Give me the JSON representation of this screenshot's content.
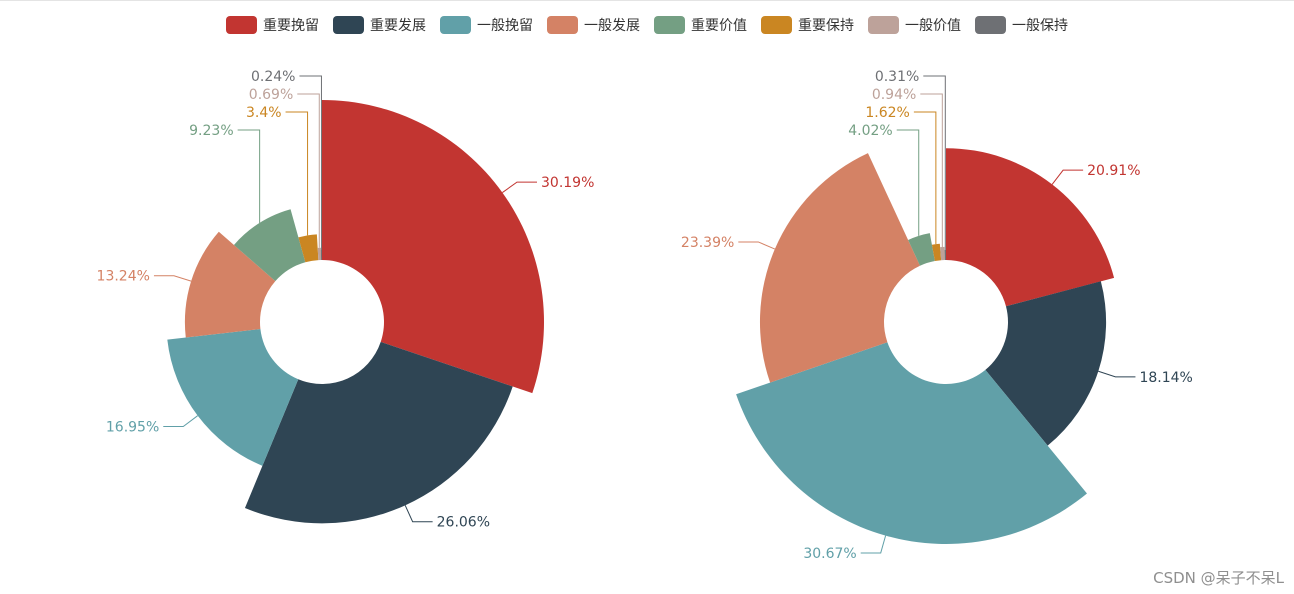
{
  "legend": [
    {
      "name": "重要挽留",
      "color": "#c23531"
    },
    {
      "name": "重要发展",
      "color": "#2f4554"
    },
    {
      "name": "一般挽留",
      "color": "#61a0a8"
    },
    {
      "name": "一般发展",
      "color": "#d48265"
    },
    {
      "name": "重要价值",
      "color": "#749f83"
    },
    {
      "name": "重要保持",
      "color": "#ca8622"
    },
    {
      "name": "一般价值",
      "color": "#bda29a"
    },
    {
      "name": "一般保持",
      "color": "#6e7074"
    }
  ],
  "chart_data": [
    {
      "type": "pie",
      "rose_type": "radius",
      "title": "",
      "categories": [
        "重要挽留",
        "重要发展",
        "一般挽留",
        "一般发展",
        "重要价值",
        "重要保持",
        "一般价值",
        "一般保持"
      ],
      "values": [
        30.19,
        26.06,
        16.95,
        13.24,
        9.23,
        3.4,
        0.69,
        0.24
      ],
      "labels": [
        "30.19%",
        "26.06%",
        "16.95%",
        "13.24%",
        "9.23%",
        "3.4%",
        "0.69%",
        "0.24%"
      ]
    },
    {
      "type": "pie",
      "rose_type": "radius",
      "title": "",
      "categories": [
        "重要挽留",
        "重要发展",
        "一般挽留",
        "一般发展",
        "重要价值",
        "重要保持",
        "一般价值",
        "一般保持"
      ],
      "values": [
        20.91,
        18.14,
        30.67,
        23.39,
        4.02,
        1.62,
        0.94,
        0.31
      ],
      "labels": [
        "20.91%",
        "18.14%",
        "30.67%",
        "23.39%",
        "4.02%",
        "1.62%",
        "0.94%",
        "0.31%"
      ]
    }
  ],
  "watermark": "CSDN @呆子不呆L"
}
